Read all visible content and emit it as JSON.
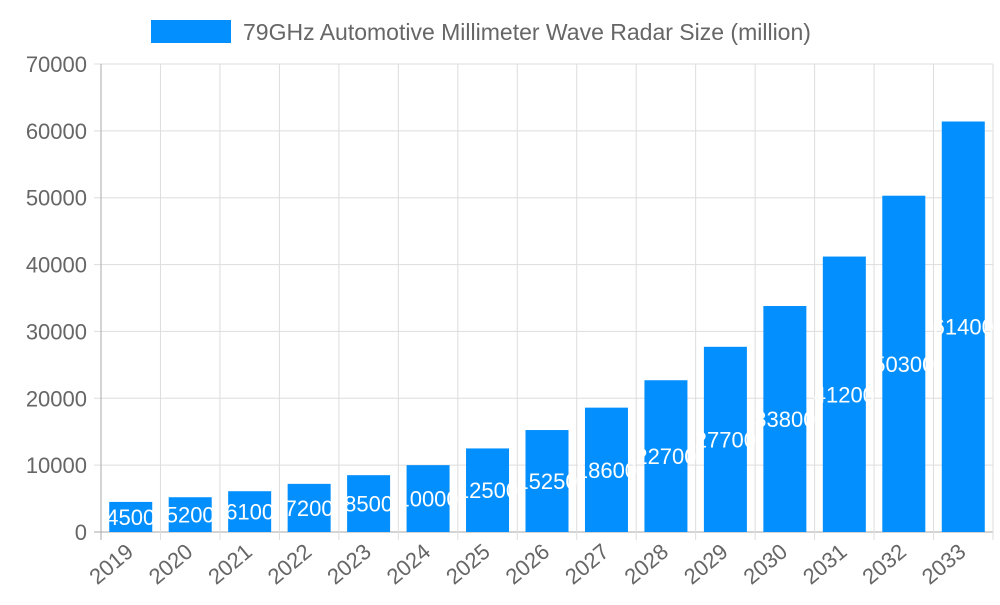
{
  "chart_data": {
    "type": "bar",
    "title": "",
    "xlabel": "",
    "ylabel": "",
    "categories": [
      "2019",
      "2020",
      "2021",
      "2022",
      "2023",
      "2024",
      "2025",
      "2026",
      "2027",
      "2028",
      "2029",
      "2030",
      "2031",
      "2032",
      "2033"
    ],
    "series": [
      {
        "name": "79GHz Automotive Millimeter Wave Radar Size (million)",
        "values": [
          4500,
          5200,
          6100,
          7200,
          8500,
          10000,
          12500,
          15250,
          18600,
          22700,
          27700,
          33800,
          41200,
          50300,
          61400
        ]
      }
    ],
    "ylim": [
      0,
      70000
    ],
    "yticks": [
      0,
      10000,
      20000,
      30000,
      40000,
      50000,
      60000,
      70000
    ],
    "grid": true,
    "legend": "top",
    "data_labels": true,
    "colors": {
      "bar": "#038ffe",
      "grid": "#dddddd",
      "label": "#ffffff",
      "text": "#666666"
    }
  }
}
